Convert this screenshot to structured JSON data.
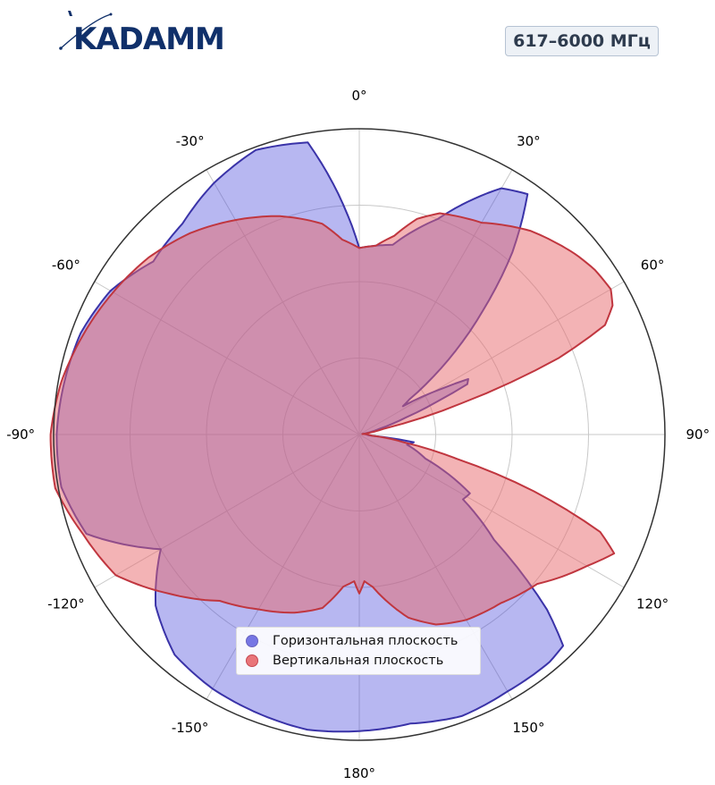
{
  "brand": {
    "logo_text": "KADAMM",
    "logo_color": "#10306a"
  },
  "frequency_badge": "617–6000 МГц",
  "chart_data": {
    "type": "polar",
    "theta_zero": "top",
    "theta_direction": "clockwise",
    "angle_ticks": [
      "0°",
      "30°",
      "60°",
      "90°",
      "120°",
      "150°",
      "180°",
      "-150°",
      "-120°",
      "-90°",
      "-60°",
      "-30°"
    ],
    "radial_rings": [
      0.25,
      0.5,
      0.75,
      1.0
    ],
    "radial_tick_labels": false,
    "grid": true,
    "legend": "bottom-center",
    "series": [
      {
        "name": "Горизонтальная плоскость",
        "color": "#4b4bdc",
        "edge_color": "#3a33a8",
        "fill_opacity": 0.4,
        "points": [
          [
            0,
            0.61
          ],
          [
            10,
            0.63
          ],
          [
            20,
            0.75
          ],
          [
            30,
            0.93
          ],
          [
            35,
            0.96
          ],
          [
            40,
            0.78
          ],
          [
            45,
            0.57
          ],
          [
            50,
            0.38
          ],
          [
            55,
            0.2
          ],
          [
            57,
            0.17
          ],
          [
            59,
            0.24
          ],
          [
            61,
            0.31
          ],
          [
            63,
            0.4
          ],
          [
            65,
            0.39
          ],
          [
            67,
            0.28
          ],
          [
            70,
            0.16
          ],
          [
            74,
            0.07
          ],
          [
            80,
            0.01
          ],
          [
            95,
            0.03
          ],
          [
            98,
            0.18
          ],
          [
            102,
            0.16
          ],
          [
            110,
            0.23
          ],
          [
            118,
            0.41
          ],
          [
            122,
            0.4
          ],
          [
            128,
            0.56
          ],
          [
            133,
            0.84
          ],
          [
            136,
            0.96
          ],
          [
            140,
            0.97
          ],
          [
            150,
            0.97
          ],
          [
            160,
            0.98
          ],
          [
            170,
            0.96
          ],
          [
            180,
            0.97
          ],
          [
            190,
            0.98
          ],
          [
            200,
            0.97
          ],
          [
            210,
            0.96
          ],
          [
            220,
            0.94
          ],
          [
            230,
            0.87
          ],
          [
            240,
            0.75
          ],
          [
            250,
            0.95
          ],
          [
            260,
            0.99
          ],
          [
            270,
            0.99
          ],
          [
            280,
            0.98
          ],
          [
            290,
            0.97
          ],
          [
            300,
            0.94
          ],
          [
            310,
            0.88
          ],
          [
            320,
            0.9
          ],
          [
            330,
            0.95
          ],
          [
            340,
            0.99
          ],
          [
            350,
            0.97
          ],
          [
            360,
            0.61
          ]
        ]
      },
      {
        "name": "Вертикальная плоскость",
        "color": "#e8676b",
        "edge_color": "#c0363f",
        "fill_opacity": 0.5,
        "points": [
          [
            0,
            0.61
          ],
          [
            5,
            0.62
          ],
          [
            10,
            0.66
          ],
          [
            15,
            0.73
          ],
          [
            20,
            0.77
          ],
          [
            30,
            0.8
          ],
          [
            40,
            0.87
          ],
          [
            50,
            0.92
          ],
          [
            55,
            0.94
          ],
          [
            60,
            0.95
          ],
          [
            63,
            0.93
          ],
          [
            66,
            0.88
          ],
          [
            69,
            0.7
          ],
          [
            73,
            0.35
          ],
          [
            77,
            0.08
          ],
          [
            82,
            0.01
          ],
          [
            95,
            0.04
          ],
          [
            100,
            0.15
          ],
          [
            104,
            0.33
          ],
          [
            108,
            0.6
          ],
          [
            112,
            0.85
          ],
          [
            115,
            0.92
          ],
          [
            120,
            0.86
          ],
          [
            130,
            0.76
          ],
          [
            140,
            0.72
          ],
          [
            150,
            0.7
          ],
          [
            158,
            0.67
          ],
          [
            165,
            0.62
          ],
          [
            170,
            0.56
          ],
          [
            175,
            0.5
          ],
          [
            178,
            0.48
          ],
          [
            180,
            0.52
          ],
          [
            182,
            0.48
          ],
          [
            186,
            0.5
          ],
          [
            192,
            0.58
          ],
          [
            200,
            0.62
          ],
          [
            210,
            0.66
          ],
          [
            220,
            0.71
          ],
          [
            230,
            0.81
          ],
          [
            240,
            0.92
          ],
          [
            250,
            0.96
          ],
          [
            260,
            1.01
          ],
          [
            270,
            1.01
          ],
          [
            280,
            0.99
          ],
          [
            290,
            0.96
          ],
          [
            300,
            0.93
          ],
          [
            310,
            0.9
          ],
          [
            320,
            0.86
          ],
          [
            330,
            0.81
          ],
          [
            340,
            0.76
          ],
          [
            350,
            0.7
          ],
          [
            355,
            0.64
          ],
          [
            360,
            0.61
          ]
        ]
      }
    ]
  }
}
